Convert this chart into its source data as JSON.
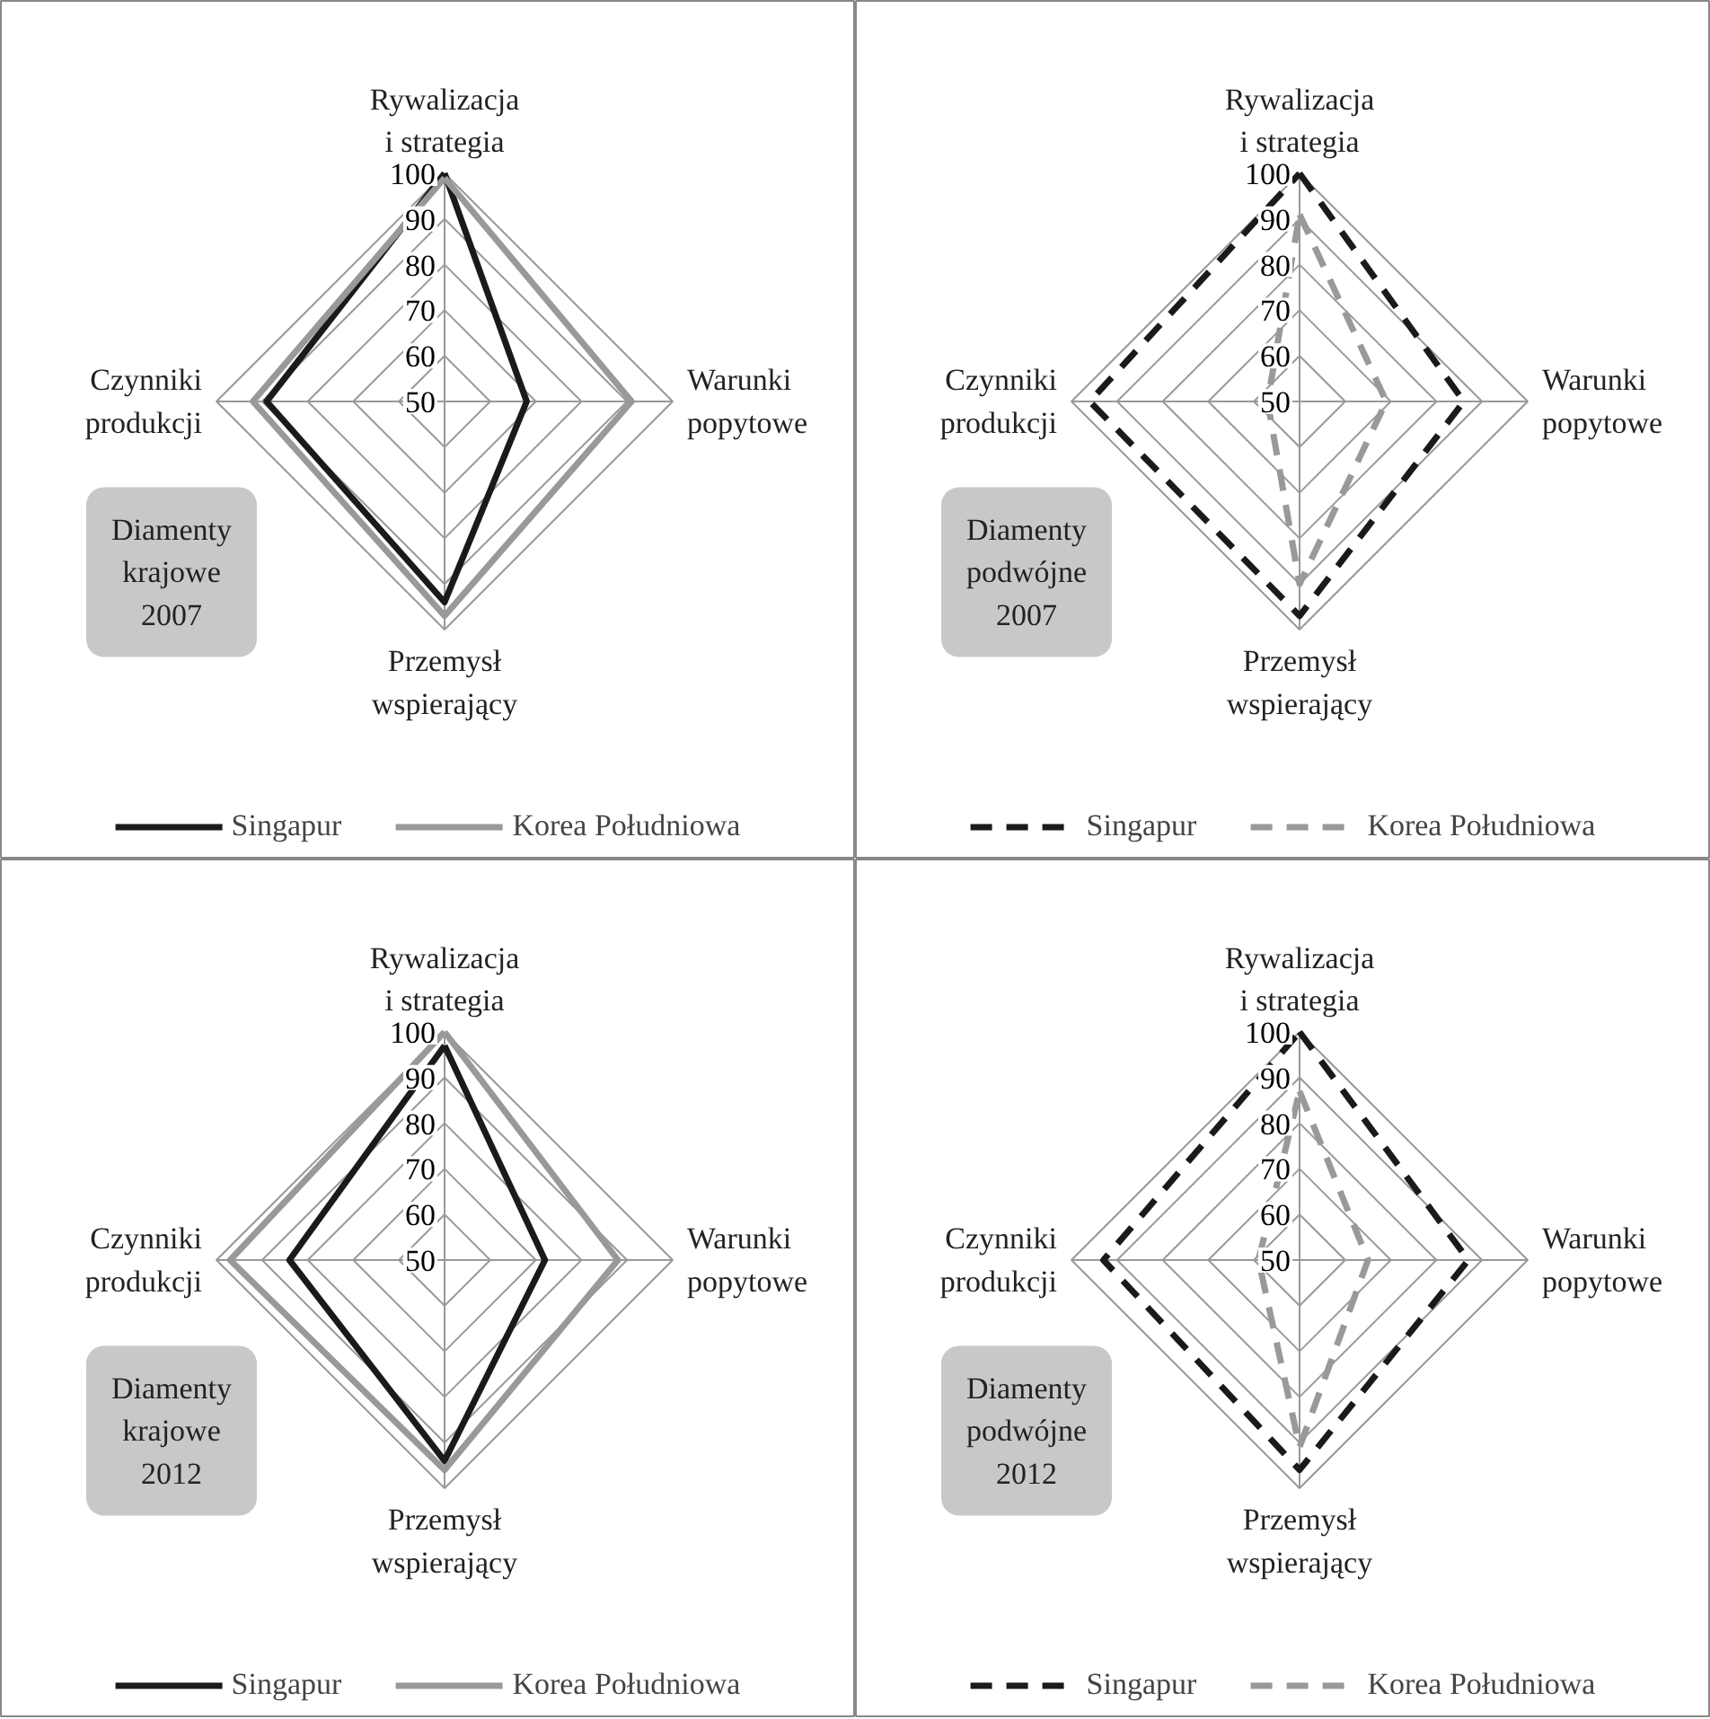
{
  "chart_data": [
    {
      "type": "radar",
      "categories": [
        "Rywalizacja\ni strategia",
        "Warunki\npopytowe",
        "Przemysł\nwspierający",
        "Czynniki\nprodukcji"
      ],
      "ylim": [
        50,
        100
      ],
      "yticks": [
        50,
        60,
        70,
        80,
        90,
        100
      ],
      "legend": "bottom",
      "annotations": [
        "Diamenty\nkrajowe\n2007"
      ],
      "series": [
        {
          "name": "Singapur",
          "color": "#1a1a1a",
          "line_style": "solid",
          "values": [
            100,
            68,
            94,
            89
          ]
        },
        {
          "name": "Korea Południowa",
          "color": "#999999",
          "line_style": "solid",
          "values": [
            99,
            91,
            97,
            92
          ]
        }
      ]
    },
    {
      "type": "radar",
      "categories": [
        "Rywalizacja\ni strategia",
        "Warunki\npopytowe",
        "Przemysł\nwspierający",
        "Czynniki\nprodukcji"
      ],
      "ylim": [
        50,
        100
      ],
      "yticks": [
        50,
        60,
        70,
        80,
        90,
        100
      ],
      "legend": "bottom",
      "annotations": [
        "Diamenty\npodwójne\n2007"
      ],
      "series": [
        {
          "name": "Singapur",
          "color": "#1a1a1a",
          "line_style": "dashed",
          "values": [
            100,
            86,
            97,
            96
          ]
        },
        {
          "name": "Korea Południowa",
          "color": "#999999",
          "line_style": "dashed",
          "values": [
            91,
            69,
            90,
            57
          ]
        }
      ]
    },
    {
      "type": "radar",
      "categories": [
        "Rywalizacja\ni strategia",
        "Warunki\npopytowe",
        "Przemysł\nwspierający",
        "Czynniki\nprodukcji"
      ],
      "ylim": [
        50,
        100
      ],
      "yticks": [
        50,
        60,
        70,
        80,
        90,
        100
      ],
      "legend": "bottom",
      "annotations": [
        "Diamenty\nkrajowe\n2012"
      ],
      "series": [
        {
          "name": "Singapur",
          "color": "#1a1a1a",
          "line_style": "solid",
          "values": [
            97,
            72,
            94,
            84
          ]
        },
        {
          "name": "Korea Południowa",
          "color": "#999999",
          "line_style": "solid",
          "values": [
            100,
            88,
            96,
            97
          ]
        }
      ]
    },
    {
      "type": "radar",
      "categories": [
        "Rywalizacja\ni strategia",
        "Warunki\npopytowe",
        "Przemysł\nwspierający",
        "Czynniki\nprodukcji"
      ],
      "ylim": [
        50,
        100
      ],
      "yticks": [
        50,
        60,
        70,
        80,
        90,
        100
      ],
      "legend": "bottom",
      "annotations": [
        "Diamenty\npodwójne\n2012"
      ],
      "series": [
        {
          "name": "Singapur",
          "color": "#1a1a1a",
          "line_style": "dashed",
          "values": [
            100,
            87,
            96,
            93
          ]
        },
        {
          "name": "Korea Południowa",
          "color": "#999999",
          "line_style": "dashed",
          "values": [
            87,
            65,
            91,
            59
          ]
        }
      ]
    }
  ]
}
